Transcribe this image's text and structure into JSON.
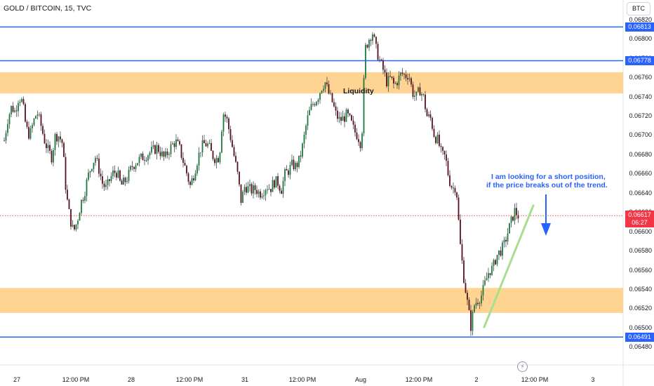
{
  "header": {
    "title": "GOLD / BITCOIN, 15, TVC",
    "currency": "BTC"
  },
  "chart_data": {
    "type": "candlestick",
    "title": "GOLD / BITCOIN, 15, TVC",
    "y_axis": {
      "side": "right",
      "range": [
        0.06462,
        0.06841
      ],
      "ticks": [
        "0.06480",
        "0.06500",
        "0.06520",
        "0.06540",
        "0.06560",
        "0.06580",
        "0.06600",
        "0.06620",
        "0.06640",
        "0.06660",
        "0.06680",
        "0.06700",
        "0.06720",
        "0.06740",
        "0.06760",
        "0.06780",
        "0.06800",
        "0.06820"
      ]
    },
    "x_axis": {
      "ticks": [
        "27",
        "12:00 PM",
        "28",
        "12:00 PM",
        "31",
        "12:00 PM",
        "Aug",
        "12:00 PM",
        "2",
        "12:00 PM",
        "3"
      ]
    },
    "horizontal_lines": [
      {
        "price": 0.06813,
        "label": "0.06813",
        "color": "#2962ff"
      },
      {
        "price": 0.06778,
        "label": "0.06778",
        "color": "#2962ff"
      },
      {
        "price": 0.06491,
        "label": "0.06491",
        "color": "#2962ff"
      }
    ],
    "zones": [
      {
        "from": 0.06744,
        "to": 0.06766,
        "color": "#ffcc80",
        "label": "Liquidity"
      },
      {
        "from": 0.06516,
        "to": 0.06542,
        "color": "#ffcc80"
      }
    ],
    "last_price": {
      "value": "0.06617",
      "countdown": "06:27",
      "color": "#f23645"
    },
    "annotation": {
      "text_line1": "I am looking for a short position,",
      "text_line2": "if the price breaks out of the trend.",
      "color": "#2962ff"
    },
    "trendline": {
      "color": "#a5e08c",
      "from_price": 0.06491,
      "to_price": 0.06632
    },
    "colors": {
      "up": "#089981",
      "down": "#f23645",
      "candle_up": "#1b7a3a",
      "candle_down": "#5a0f1e",
      "grid": "#f0f3fa"
    },
    "price_path": [
      0.06695,
      0.06718,
      0.0673,
      0.06725,
      0.06741,
      0.06735,
      0.06708,
      0.067,
      0.06714,
      0.06725,
      0.06712,
      0.06696,
      0.06685,
      0.06678,
      0.067,
      0.067,
      0.06692,
      0.0664,
      0.06615,
      0.066,
      0.06611,
      0.0663,
      0.06641,
      0.06658,
      0.0667,
      0.06678,
      0.06665,
      0.0665,
      0.06645,
      0.06655,
      0.06662,
      0.06662,
      0.06648,
      0.06652,
      0.06658,
      0.06668,
      0.06672,
      0.06675,
      0.06678,
      0.0668,
      0.06683,
      0.06685,
      0.06688,
      0.06682,
      0.06676,
      0.06684,
      0.0669,
      0.06694,
      0.06688,
      0.06675,
      0.06662,
      0.06648,
      0.0666,
      0.06675,
      0.06688,
      0.06692,
      0.0669,
      0.0668,
      0.06676,
      0.06678,
      0.06724,
      0.06718,
      0.067,
      0.0668,
      0.0666,
      0.06632,
      0.06648,
      0.06645,
      0.06643,
      0.06645,
      0.0664,
      0.06643,
      0.06648,
      0.06645,
      0.06652,
      0.06652,
      0.06644,
      0.0666,
      0.06664,
      0.0667,
      0.06668,
      0.06675,
      0.06692,
      0.06715,
      0.06728,
      0.06735,
      0.0674,
      0.0675,
      0.06756,
      0.06744,
      0.06735,
      0.06722,
      0.06716,
      0.06718,
      0.06722,
      0.06715,
      0.06705,
      0.067,
      0.0669,
      0.0679,
      0.068,
      0.06808,
      0.0679,
      0.06778,
      0.06768,
      0.06755,
      0.0676,
      0.06752,
      0.06758,
      0.06765,
      0.06762,
      0.06764,
      0.06745,
      0.0674,
      0.06748,
      0.0674,
      0.0672,
      0.06718,
      0.067,
      0.06695,
      0.0668,
      0.06678,
      0.06655,
      0.06645,
      0.06648,
      0.0659,
      0.06555,
      0.06528,
      0.06502,
      0.06525,
      0.0653,
      0.06535,
      0.06548,
      0.0656,
      0.06562,
      0.06575,
      0.0658,
      0.06585,
      0.06598,
      0.0661,
      0.06622,
      0.06617
    ]
  }
}
